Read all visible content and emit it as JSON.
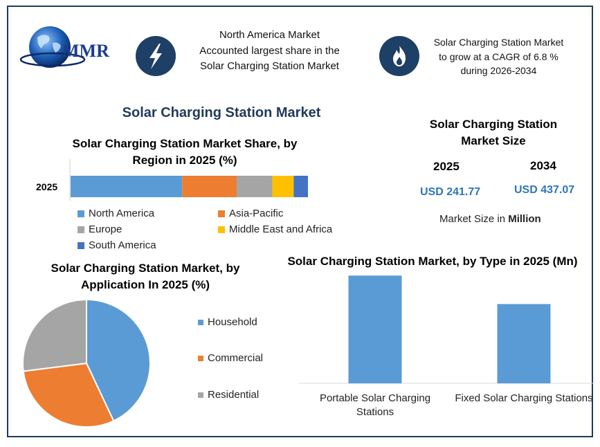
{
  "header": {
    "logo_text": "MMR",
    "highlight_left": [
      "North America Market",
      "Accounted largest share in the",
      "Solar Charging Station Market"
    ],
    "highlight_right": [
      "Solar Charging Station Market",
      "to grow at a CAGR of 6.8 %",
      "during 2026-2034"
    ],
    "icon_left": "lightning-bolt-icon",
    "icon_right": "flame-icon"
  },
  "main_title": "Solar Charging Station Market",
  "colors": {
    "primary": "#1e3f66",
    "north_america": "#5b9bd5",
    "asia_pacific": "#ed7d31",
    "europe": "#a5a5a5",
    "mea": "#ffc000",
    "south_america": "#4472c4",
    "accent_text": "#2e75b6"
  },
  "market_size": {
    "title": [
      "Solar Charging Station",
      "Market Size"
    ],
    "year1": "2025",
    "year2": "2034",
    "value1": "USD 241.77",
    "value2": "USD 437.07",
    "unit_prefix": "Market Size in ",
    "unit_bold": "Million"
  },
  "chart_data": [
    {
      "type": "bar",
      "orientation": "horizontal-stacked",
      "title": "Solar Charging Station Market Share, by Region in 2025 (%)",
      "title_lines": [
        "Solar Charging Station Market Share, by",
        "Region in 2025 (%)"
      ],
      "categories": [
        "2025"
      ],
      "series": [
        {
          "name": "North America",
          "values": [
            47
          ]
        },
        {
          "name": "Asia-Pacific",
          "values": [
            23
          ]
        },
        {
          "name": "Europe",
          "values": [
            15
          ]
        },
        {
          "name": "Middle East and Africa",
          "values": [
            9
          ]
        },
        {
          "name": "South America",
          "values": [
            6
          ]
        }
      ],
      "xlim": [
        0,
        100
      ],
      "legend": "bottom"
    },
    {
      "type": "pie",
      "title": "Solar Charging Station Market, by Application In 2025 (%)",
      "title_lines": [
        "Solar Charging Station Market, by",
        "Application In 2025 (%)"
      ],
      "labels": [
        "Household",
        "Commercial",
        "Residential"
      ],
      "values": [
        43,
        30,
        27
      ],
      "legend": "right"
    },
    {
      "type": "bar",
      "title": "Solar Charging Station Market, by Type in 2025 (Mn)",
      "categories": [
        "Portable Solar Charging Stations",
        "Fixed Solar Charging Stations"
      ],
      "category_lines": [
        [
          "Portable Solar Charging",
          "Stations"
        ],
        [
          "Fixed Solar Charging Stations"
        ]
      ],
      "values": [
        140,
        103
      ],
      "ylim": [
        0,
        160
      ],
      "grid": false
    }
  ]
}
